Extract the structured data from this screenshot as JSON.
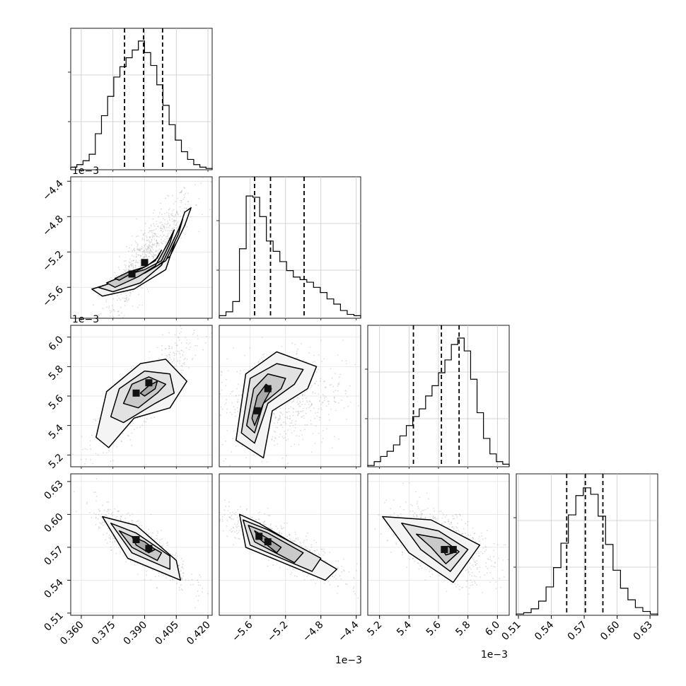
{
  "chart_data": {
    "type": "corner",
    "parameters": [
      {
        "range": [
          0.355,
          0.422
        ],
        "ticks": [
          "0.360",
          "0.375",
          "0.390",
          "0.405",
          "0.420"
        ],
        "tick_values": [
          0.36,
          0.375,
          0.39,
          0.405,
          0.42
        ],
        "offset": "",
        "quantiles": [
          0.3805,
          0.3895,
          0.3985
        ],
        "hist": [
          0.02,
          0.04,
          0.07,
          0.12,
          0.28,
          0.42,
          0.57,
          0.72,
          0.8,
          0.87,
          0.93,
          1.0,
          0.91,
          0.81,
          0.66,
          0.5,
          0.35,
          0.23,
          0.14,
          0.08,
          0.04,
          0.02,
          0.01
        ]
      },
      {
        "range": [
          -5.95,
          -4.35
        ],
        "ticks": [
          "-5.6",
          "-5.2",
          "-4.8",
          "-4.4"
        ],
        "tick_values": [
          -5.6,
          -5.2,
          -4.8,
          -4.4
        ],
        "offset": "1e−3",
        "quantiles": [
          -5.55,
          -5.37,
          -4.99
        ],
        "hist": [
          0.02,
          0.05,
          0.13,
          0.54,
          0.95,
          0.94,
          0.79,
          0.6,
          0.52,
          0.44,
          0.37,
          0.32,
          0.3,
          0.28,
          0.24,
          0.2,
          0.15,
          0.11,
          0.06,
          0.03,
          0.02
        ]
      },
      {
        "range": [
          5.12,
          6.08
        ],
        "ticks": [
          "5.2",
          "5.4",
          "5.6",
          "5.8",
          "6.0"
        ],
        "tick_values": [
          5.2,
          5.4,
          5.6,
          5.8,
          6.0
        ],
        "offset": "1e−3",
        "quantiles": [
          5.43,
          5.62,
          5.74
        ],
        "hist": [
          0.01,
          0.04,
          0.08,
          0.12,
          0.17,
          0.24,
          0.32,
          0.39,
          0.45,
          0.55,
          0.63,
          0.73,
          0.83,
          0.95,
          1.0,
          0.9,
          0.68,
          0.42,
          0.22,
          0.1,
          0.04,
          0.02
        ]
      },
      {
        "range": [
          0.508,
          0.637
        ],
        "ticks": [
          "0.51",
          "0.54",
          "0.57",
          "0.60",
          "0.63"
        ],
        "tick_values": [
          0.51,
          0.54,
          0.57,
          0.6,
          0.63
        ],
        "offset": "",
        "quantiles": [
          0.554,
          0.571,
          0.587
        ],
        "hist": [
          0.01,
          0.02,
          0.05,
          0.11,
          0.22,
          0.37,
          0.56,
          0.78,
          0.93,
          0.99,
          0.94,
          0.77,
          0.55,
          0.35,
          0.21,
          0.12,
          0.06,
          0.03,
          0.01
        ]
      }
    ],
    "row_offsets": [
      "1e−3",
      "1e−3"
    ],
    "pairs": [
      {
        "row": 1,
        "col": 0,
        "core": [
          [
            0.384,
            -5.45
          ],
          [
            0.39,
            -5.32
          ]
        ],
        "density_mean": [
          0.391,
          -5.25
        ],
        "density_cov": [
          [
            0.00011,
            0.0032
          ],
          [
            0.0032,
            0.12
          ]
        ],
        "contours": [
          [
            [
              0.376,
              -5.5
            ],
            [
              0.382,
              -5.43
            ],
            [
              0.39,
              -5.37
            ],
            [
              0.395,
              -5.3
            ],
            [
              0.398,
              -5.18
            ],
            [
              0.396,
              -5.27
            ],
            [
              0.391,
              -5.36
            ],
            [
              0.384,
              -5.44
            ],
            [
              0.378,
              -5.52
            ]
          ],
          [
            [
              0.372,
              -5.55
            ],
            [
              0.38,
              -5.47
            ],
            [
              0.39,
              -5.4
            ],
            [
              0.398,
              -5.3
            ],
            [
              0.402,
              -5.1
            ],
            [
              0.404,
              -4.95
            ],
            [
              0.401,
              -5.1
            ],
            [
              0.395,
              -5.36
            ],
            [
              0.387,
              -5.48
            ],
            [
              0.376,
              -5.6
            ]
          ],
          [
            [
              0.368,
              -5.6
            ],
            [
              0.378,
              -5.52
            ],
            [
              0.39,
              -5.44
            ],
            [
              0.4,
              -5.3
            ],
            [
              0.406,
              -5.0
            ],
            [
              0.408,
              -4.83
            ],
            [
              0.406,
              -4.95
            ],
            [
              0.398,
              -5.35
            ],
            [
              0.388,
              -5.55
            ],
            [
              0.375,
              -5.65
            ]
          ],
          [
            [
              0.365,
              -5.62
            ],
            [
              0.375,
              -5.55
            ],
            [
              0.39,
              -5.46
            ],
            [
              0.402,
              -5.25
            ],
            [
              0.409,
              -4.9
            ],
            [
              0.412,
              -4.7
            ],
            [
              0.409,
              -4.75
            ],
            [
              0.4,
              -5.4
            ],
            [
              0.385,
              -5.62
            ],
            [
              0.37,
              -5.7
            ]
          ]
        ]
      },
      {
        "row": 2,
        "col": 0,
        "core": [
          [
            0.386,
            5.62
          ],
          [
            0.392,
            5.69
          ]
        ],
        "density_mean": [
          0.389,
          5.62
        ],
        "density_cov": [
          [
            0.00011,
            0.0015
          ],
          [
            0.0015,
            0.028
          ]
        ],
        "contours": [
          [
            [
              0.388,
              5.62
            ],
            [
              0.392,
              5.67
            ],
            [
              0.396,
              5.7
            ],
            [
              0.395,
              5.65
            ],
            [
              0.39,
              5.6
            ]
          ],
          [
            [
              0.38,
              5.55
            ],
            [
              0.384,
              5.68
            ],
            [
              0.392,
              5.73
            ],
            [
              0.4,
              5.68
            ],
            [
              0.396,
              5.62
            ],
            [
              0.387,
              5.52
            ]
          ],
          [
            [
              0.374,
              5.46
            ],
            [
              0.378,
              5.65
            ],
            [
              0.39,
              5.77
            ],
            [
              0.402,
              5.75
            ],
            [
              0.404,
              5.62
            ],
            [
              0.395,
              5.55
            ],
            [
              0.38,
              5.42
            ]
          ],
          [
            [
              0.367,
              5.32
            ],
            [
              0.372,
              5.63
            ],
            [
              0.388,
              5.82
            ],
            [
              0.4,
              5.85
            ],
            [
              0.41,
              5.7
            ],
            [
              0.402,
              5.52
            ],
            [
              0.385,
              5.45
            ],
            [
              0.373,
              5.25
            ]
          ]
        ]
      },
      {
        "row": 2,
        "col": 1,
        "core": [
          [
            -5.52,
            5.5
          ],
          [
            -5.4,
            5.65
          ]
        ],
        "density_mean": [
          -5.28,
          5.58
        ],
        "density_cov": [
          [
            0.12,
            0.008
          ],
          [
            0.008,
            0.028
          ]
        ],
        "contours": [
          [
            [
              -5.58,
              5.45
            ],
            [
              -5.52,
              5.6
            ],
            [
              -5.42,
              5.68
            ],
            [
              -5.36,
              5.65
            ],
            [
              -5.45,
              5.55
            ],
            [
              -5.55,
              5.4
            ]
          ],
          [
            [
              -5.64,
              5.4
            ],
            [
              -5.56,
              5.65
            ],
            [
              -5.4,
              5.75
            ],
            [
              -5.2,
              5.72
            ],
            [
              -5.25,
              5.65
            ],
            [
              -5.45,
              5.55
            ],
            [
              -5.55,
              5.35
            ]
          ],
          [
            [
              -5.7,
              5.35
            ],
            [
              -5.6,
              5.72
            ],
            [
              -5.3,
              5.82
            ],
            [
              -5.0,
              5.78
            ],
            [
              -5.1,
              5.68
            ],
            [
              -5.4,
              5.55
            ],
            [
              -5.55,
              5.28
            ]
          ],
          [
            [
              -5.76,
              5.3
            ],
            [
              -5.65,
              5.75
            ],
            [
              -5.3,
              5.9
            ],
            [
              -4.85,
              5.8
            ],
            [
              -4.95,
              5.65
            ],
            [
              -5.35,
              5.5
            ],
            [
              -5.45,
              5.18
            ]
          ]
        ]
      },
      {
        "row": 3,
        "col": 0,
        "core": [
          [
            0.386,
            0.577
          ],
          [
            0.392,
            0.569
          ]
        ],
        "density_mean": [
          0.389,
          0.571
        ],
        "density_cov": [
          [
            0.00011,
            -0.00014
          ],
          [
            -0.00014,
            0.00026
          ]
        ],
        "contours": [
          [
            [
              0.384,
              0.58
            ],
            [
              0.39,
              0.575
            ],
            [
              0.395,
              0.568
            ],
            [
              0.392,
              0.565
            ],
            [
              0.386,
              0.572
            ]
          ],
          [
            [
              0.378,
              0.585
            ],
            [
              0.386,
              0.578
            ],
            [
              0.398,
              0.565
            ],
            [
              0.396,
              0.558
            ],
            [
              0.384,
              0.57
            ]
          ],
          [
            [
              0.374,
              0.592
            ],
            [
              0.386,
              0.583
            ],
            [
              0.402,
              0.562
            ],
            [
              0.402,
              0.55
            ],
            [
              0.384,
              0.565
            ]
          ],
          [
            [
              0.37,
              0.598
            ],
            [
              0.386,
              0.59
            ],
            [
              0.405,
              0.558
            ],
            [
              0.407,
              0.54
            ],
            [
              0.382,
              0.56
            ]
          ]
        ]
      },
      {
        "row": 3,
        "col": 1,
        "core": [
          [
            -5.5,
            0.58
          ],
          [
            -5.4,
            0.575
          ]
        ],
        "density_mean": [
          -5.25,
          0.571
        ],
        "density_cov": [
          [
            0.12,
            -0.0048
          ],
          [
            -0.0048,
            0.00026
          ]
        ],
        "contours": [
          [
            [
              -5.55,
              0.585
            ],
            [
              -5.4,
              0.578
            ],
            [
              -5.25,
              0.57
            ],
            [
              -5.3,
              0.565
            ],
            [
              -5.5,
              0.578
            ]
          ],
          [
            [
              -5.62,
              0.59
            ],
            [
              -5.4,
              0.583
            ],
            [
              -5.0,
              0.565
            ],
            [
              -5.1,
              0.556
            ],
            [
              -5.55,
              0.575
            ]
          ],
          [
            [
              -5.68,
              0.595
            ],
            [
              -5.4,
              0.586
            ],
            [
              -4.8,
              0.56
            ],
            [
              -4.9,
              0.548
            ],
            [
              -5.6,
              0.572
            ]
          ],
          [
            [
              -5.72,
              0.6
            ],
            [
              -5.5,
              0.592
            ],
            [
              -4.62,
              0.55
            ],
            [
              -4.75,
              0.54
            ],
            [
              -5.65,
              0.57
            ]
          ]
        ]
      },
      {
        "row": 3,
        "col": 2,
        "core": [
          [
            5.64,
            0.568
          ],
          [
            5.7,
            0.568
          ]
        ],
        "density_mean": [
          5.62,
          0.574
        ],
        "density_cov": [
          [
            0.028,
            -0.0014
          ],
          [
            -0.0014,
            0.00026
          ]
        ],
        "contours": [
          [
            [
              5.62,
              0.57
            ],
            [
              5.67,
              0.571
            ],
            [
              5.7,
              0.565
            ],
            [
              5.65,
              0.563
            ]
          ],
          [
            [
              5.45,
              0.582
            ],
            [
              5.62,
              0.578
            ],
            [
              5.74,
              0.566
            ],
            [
              5.65,
              0.555
            ],
            [
              5.55,
              0.57
            ]
          ],
          [
            [
              5.35,
              0.592
            ],
            [
              5.6,
              0.585
            ],
            [
              5.8,
              0.568
            ],
            [
              5.68,
              0.548
            ],
            [
              5.48,
              0.568
            ]
          ],
          [
            [
              5.22,
              0.598
            ],
            [
              5.55,
              0.595
            ],
            [
              5.88,
              0.572
            ],
            [
              5.7,
              0.538
            ],
            [
              5.4,
              0.565
            ]
          ]
        ]
      }
    ]
  }
}
